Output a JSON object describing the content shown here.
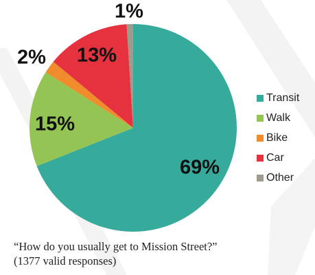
{
  "chart_data": {
    "type": "pie",
    "title": "“How do you usually get to Mission Street?”",
    "subtitle": "(1377 valid responses)",
    "legend_position": "right",
    "slices": [
      {
        "label": "Transit",
        "value": 69,
        "display": "69%",
        "color": "#36ab9c"
      },
      {
        "label": "Walk",
        "value": 15,
        "display": "15%",
        "color": "#93c454"
      },
      {
        "label": "Bike",
        "value": 2,
        "display": "2%",
        "color": "#f08c2c"
      },
      {
        "label": "Car",
        "value": 13,
        "display": "13%",
        "color": "#e6313f"
      },
      {
        "label": "Other",
        "value": 1,
        "display": "1%",
        "color": "#9e9a8d"
      }
    ]
  }
}
